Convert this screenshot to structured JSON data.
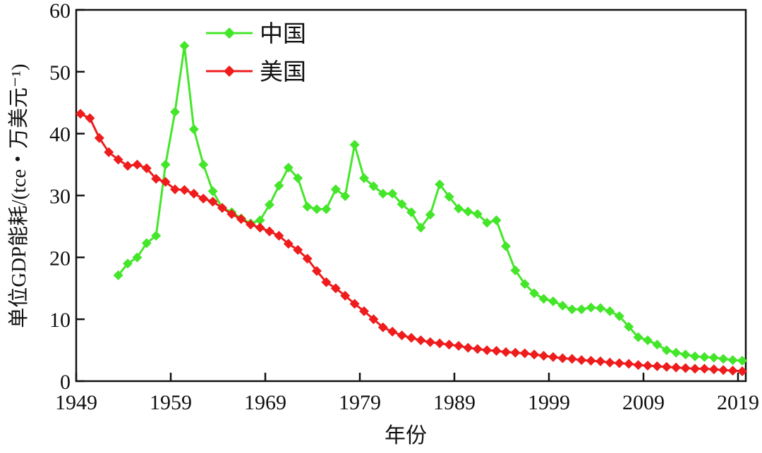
{
  "chart_data": {
    "type": "line",
    "title": "",
    "xlabel": "年份",
    "ylabel": "单位GDP能耗/(tce・万美元⁻¹)",
    "xlim": [
      1949,
      2020
    ],
    "ylim": [
      0,
      60
    ],
    "xticks": [
      1949,
      1959,
      1969,
      1979,
      1989,
      1999,
      2009,
      2019
    ],
    "yticks": [
      0,
      10,
      20,
      30,
      40,
      50,
      60
    ],
    "grid": false,
    "legend_position": "top-center",
    "series": [
      {
        "name": "中国",
        "color": "#44e62a",
        "marker": "diamond",
        "x_start": 1953,
        "values": [
          17.1,
          19.0,
          20.0,
          22.3,
          23.5,
          35.0,
          43.5,
          54.2,
          40.7,
          35.0,
          30.7,
          28.0,
          27.3,
          26.3,
          25.5,
          26.0,
          28.5,
          31.6,
          34.5,
          32.8,
          28.2,
          27.8,
          27.8,
          31.0,
          29.9,
          38.2,
          32.8,
          31.5,
          30.3,
          30.3,
          28.6,
          27.3,
          24.8,
          26.9,
          31.8,
          29.8,
          27.9,
          27.4,
          27.0,
          25.6,
          26.0,
          21.8,
          17.9,
          15.7,
          14.2,
          13.3,
          12.9,
          12.2,
          11.6,
          11.6,
          11.9,
          11.8,
          11.3,
          10.5,
          8.8,
          7.1,
          6.6,
          5.9,
          5.0,
          4.6,
          4.3,
          4.0,
          3.9,
          3.8,
          3.6,
          3.4,
          3.3
        ]
      },
      {
        "name": "美国",
        "color": "#ee1c1c",
        "marker": "diamond",
        "x_start": 1949,
        "values": [
          43.2,
          42.5,
          39.3,
          37.0,
          35.8,
          34.8,
          35.0,
          34.4,
          32.7,
          32.2,
          31.0,
          30.9,
          30.3,
          29.5,
          29.0,
          28.0,
          27.0,
          26.2,
          25.3,
          24.8,
          24.2,
          23.5,
          22.2,
          21.2,
          19.8,
          17.8,
          16.0,
          15.0,
          13.8,
          12.5,
          11.3,
          10.0,
          8.7,
          8.0,
          7.4,
          7.0,
          6.6,
          6.3,
          6.1,
          5.9,
          5.7,
          5.4,
          5.2,
          5.0,
          4.9,
          4.7,
          4.6,
          4.5,
          4.3,
          4.1,
          3.9,
          3.7,
          3.6,
          3.4,
          3.3,
          3.2,
          3.0,
          2.9,
          2.8,
          2.6,
          2.5,
          2.4,
          2.3,
          2.2,
          2.1,
          2.0,
          2.0,
          1.9,
          1.8,
          1.7,
          1.6
        ]
      }
    ]
  }
}
